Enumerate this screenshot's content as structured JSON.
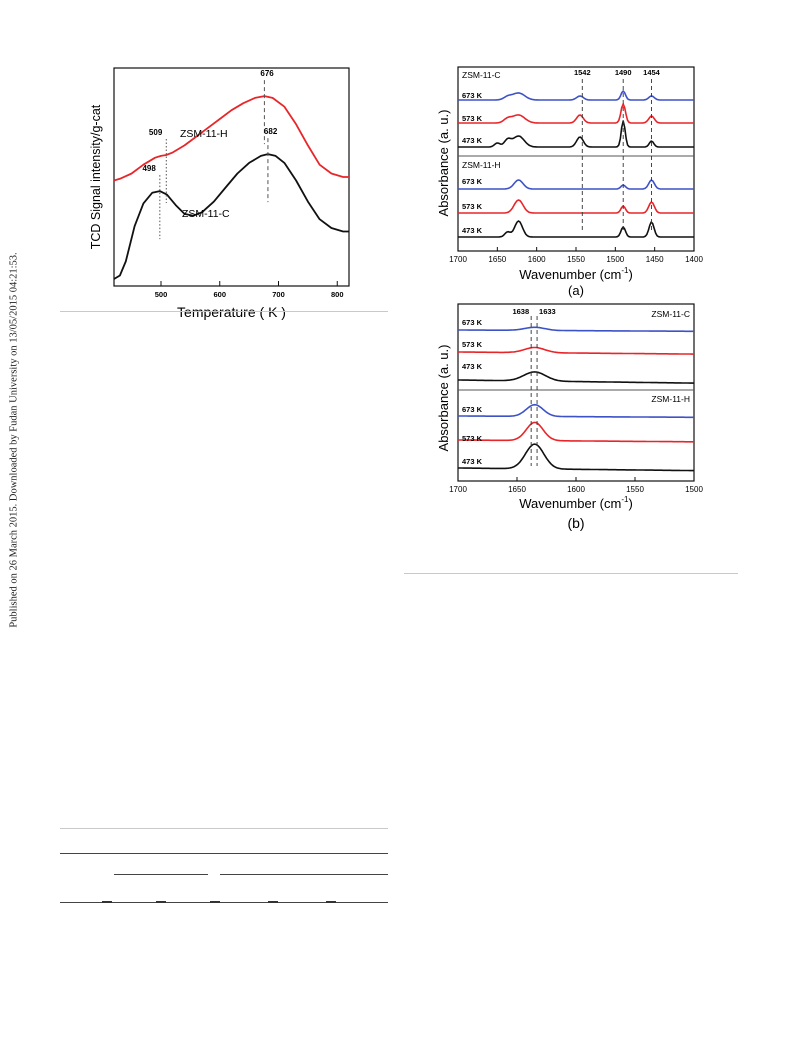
{
  "sidebar_note": "Published on 26 March 2015. Downloaded by Fudan University on 13/05/2015 04:21:53.",
  "colors": {
    "black_series": "#111111",
    "red_series": "#e8262a",
    "blue_series": "#3d52c7",
    "rule": "#c9c9c9"
  },
  "chart_data": [
    {
      "id": "tpd",
      "type": "line",
      "xlabel": "Temperature ( K )",
      "ylabel": "TCD Signal intensity/g-cat",
      "xlim": [
        420,
        820
      ],
      "xticks": [
        500,
        600,
        700,
        800
      ],
      "series": [
        {
          "name": "ZSM-11-H",
          "color": "#e8262a",
          "x": [
            420,
            430,
            450,
            470,
            490,
            500,
            509,
            520,
            540,
            560,
            580,
            600,
            620,
            640,
            660,
            676,
            690,
            710,
            730,
            750,
            770,
            790,
            810,
            820
          ],
          "y": [
            0.58,
            0.59,
            0.62,
            0.67,
            0.71,
            0.72,
            0.725,
            0.74,
            0.78,
            0.83,
            0.88,
            0.93,
            0.98,
            1.02,
            1.05,
            1.06,
            1.05,
            1.0,
            0.9,
            0.78,
            0.67,
            0.62,
            0.6,
            0.6
          ]
        },
        {
          "name": "ZSM-11-C",
          "color": "#111111",
          "x": [
            420,
            430,
            440,
            455,
            470,
            485,
            498,
            510,
            525,
            540,
            555,
            570,
            590,
            610,
            630,
            650,
            670,
            682,
            695,
            710,
            730,
            750,
            770,
            790,
            810,
            820
          ],
          "y": [
            0.02,
            0.04,
            0.12,
            0.32,
            0.45,
            0.51,
            0.52,
            0.5,
            0.44,
            0.39,
            0.38,
            0.4,
            0.46,
            0.54,
            0.62,
            0.68,
            0.72,
            0.73,
            0.72,
            0.68,
            0.58,
            0.46,
            0.36,
            0.31,
            0.29,
            0.29
          ]
        }
      ],
      "annotations": [
        "509",
        "676",
        "498",
        "682"
      ],
      "peaks": [
        {
          "label": "509",
          "x": 509,
          "series": "ZSM-11-H",
          "line": "dotted"
        },
        {
          "label": "676",
          "x": 676,
          "series": "ZSM-11-H",
          "line": "dashed"
        },
        {
          "label": "498",
          "x": 498,
          "series": "ZSM-11-C",
          "line": "dotted"
        },
        {
          "label": "682",
          "x": 682,
          "series": "ZSM-11-C",
          "line": "dashed"
        }
      ],
      "grid": false
    },
    {
      "id": "ir_a",
      "type": "line",
      "xlabel": "Wavenumber (cm",
      "xlabel_sup": "-1",
      "xlabel_close": ")",
      "ylabel": "Absorbance (a. u.)",
      "panel_label": "(a)",
      "xlim": [
        1700,
        1400
      ],
      "xticks": [
        1700,
        1650,
        1600,
        1550,
        1500,
        1450,
        1400
      ],
      "groups": [
        "ZSM-11-C",
        "ZSM-11-H"
      ],
      "series_labels": [
        "673 K",
        "573 K",
        "473 K"
      ],
      "peaks": [
        "1542",
        "1490",
        "1454"
      ],
      "peak_positions": [
        1542,
        1490,
        1454
      ],
      "series": [
        {
          "group": "ZSM-11-C",
          "name": "673 K",
          "color": "#3d52c7",
          "bands": [
            [
              1623,
              0.35,
              11
            ],
            [
              1637,
              0.15,
              7
            ],
            [
              1545,
              0.2,
              6
            ],
            [
              1490,
              0.45,
              4
            ],
            [
              1454,
              0.2,
              5
            ]
          ]
        },
        {
          "group": "ZSM-11-C",
          "name": "573 K",
          "color": "#e8262a",
          "bands": [
            [
              1623,
              0.4,
              11
            ],
            [
              1637,
              0.2,
              7
            ],
            [
              1545,
              0.4,
              6
            ],
            [
              1490,
              0.95,
              4
            ],
            [
              1454,
              0.35,
              5
            ]
          ]
        },
        {
          "group": "ZSM-11-C",
          "name": "473 K",
          "color": "#111111",
          "bands": [
            [
              1623,
              0.55,
              10
            ],
            [
              1637,
              0.35,
              6
            ],
            [
              1650,
              0.2,
              5
            ],
            [
              1545,
              0.5,
              6
            ],
            [
              1490,
              1.3,
              3.5
            ],
            [
              1454,
              0.3,
              4
            ]
          ]
        },
        {
          "group": "ZSM-11-H",
          "name": "673 K",
          "color": "#3d52c7",
          "bands": [
            [
              1623,
              0.45,
              8
            ],
            [
              1490,
              0.2,
              4
            ],
            [
              1454,
              0.45,
              5
            ]
          ]
        },
        {
          "group": "ZSM-11-H",
          "name": "573 K",
          "color": "#e8262a",
          "bands": [
            [
              1623,
              0.65,
              8
            ],
            [
              1490,
              0.35,
              4
            ],
            [
              1454,
              0.55,
              5
            ]
          ]
        },
        {
          "group": "ZSM-11-H",
          "name": "473 K",
          "color": "#111111",
          "bands": [
            [
              1623,
              0.8,
              7
            ],
            [
              1637,
              0.25,
              5
            ],
            [
              1490,
              0.5,
              4
            ],
            [
              1454,
              0.75,
              4.5
            ]
          ]
        }
      ]
    },
    {
      "id": "ir_b",
      "type": "line",
      "xlabel": "Wavenumber (cm",
      "xlabel_sup": "-1",
      "xlabel_close": ")",
      "ylabel": "Absorbance (a. u.)",
      "panel_label": "(b)",
      "xlim": [
        1700,
        1500
      ],
      "xticks": [
        1700,
        1650,
        1600,
        1550,
        1500
      ],
      "groups": [
        "ZSM-11-C",
        "ZSM-11-H"
      ],
      "series_labels": [
        "673 K",
        "573 K",
        "473 K"
      ],
      "peaks": [
        "1638",
        "1633"
      ],
      "peak_positions": [
        1638,
        1633
      ],
      "series": [
        {
          "group": "ZSM-11-C",
          "name": "673 K",
          "color": "#3d52c7",
          "bands": [
            [
              1635,
              0.12,
              12
            ]
          ],
          "slope": -0.05
        },
        {
          "group": "ZSM-11-C",
          "name": "573 K",
          "color": "#e8262a",
          "bands": [
            [
              1635,
              0.2,
              12
            ]
          ],
          "slope": -0.08
        },
        {
          "group": "ZSM-11-C",
          "name": "473 K",
          "color": "#111111",
          "bands": [
            [
              1635,
              0.35,
              13
            ]
          ],
          "slope": -0.12
        },
        {
          "group": "ZSM-11-H",
          "name": "673 K",
          "color": "#3d52c7",
          "bands": [
            [
              1635,
              0.45,
              10
            ]
          ],
          "slope": -0.05
        },
        {
          "group": "ZSM-11-H",
          "name": "573 K",
          "color": "#e8262a",
          "bands": [
            [
              1635,
              0.7,
              10
            ]
          ],
          "slope": -0.07
        },
        {
          "group": "ZSM-11-H",
          "name": "473 K",
          "color": "#111111",
          "bands": [
            [
              1635,
              0.95,
              11
            ]
          ],
          "slope": -0.1
        }
      ]
    }
  ]
}
